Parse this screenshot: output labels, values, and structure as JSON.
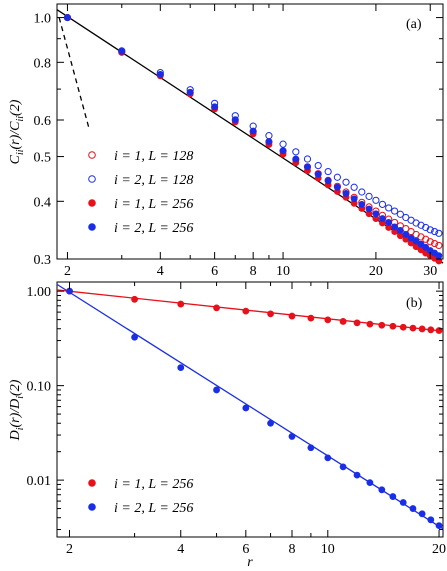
{
  "chart_data": [
    {
      "panel": "(a)",
      "type": "scatter",
      "xscale": "log",
      "yscale": "log",
      "xlim": [
        1.85,
        33
      ],
      "ylim": [
        0.3,
        1.07
      ],
      "xticks": [
        2,
        4,
        6,
        8,
        10,
        20,
        30
      ],
      "yticks": [
        0.3,
        0.4,
        0.5,
        0.6,
        0.8,
        1.0
      ],
      "xtick_labels": [
        "2",
        "4",
        "6",
        "8",
        "10",
        "20",
        "30"
      ],
      "ytick_labels": [
        "0.3",
        "0.4",
        "0.5",
        "0.6",
        "0.8",
        "1.0"
      ],
      "ylabel_main": "C",
      "ylabel_sub1": "ii",
      "ylabel_mid": "(r)/C",
      "ylabel_sub2": "ii",
      "ylabel_end": "(2)",
      "series": [
        {
          "name": "i = 1, L = 128",
          "color": "#e8101a",
          "filled": false,
          "x": [
            2,
            3,
            4,
            5,
            6,
            7,
            8,
            9,
            10,
            11,
            12,
            13,
            14,
            15,
            16,
            17,
            18,
            19,
            20,
            21,
            22,
            23,
            24,
            25,
            26,
            27,
            28,
            29,
            30,
            31,
            32
          ],
          "y": [
            1.0,
            0.843,
            0.752,
            0.688,
            0.64,
            0.6,
            0.566,
            0.538,
            0.514,
            0.493,
            0.475,
            0.459,
            0.444,
            0.431,
            0.419,
            0.408,
            0.398,
            0.389,
            0.381,
            0.373,
            0.366,
            0.36,
            0.354,
            0.349,
            0.344,
            0.339,
            0.335,
            0.331,
            0.327,
            0.324,
            0.321
          ]
        },
        {
          "name": "i = 2, L = 128",
          "color": "#1a2ee8",
          "filled": false,
          "x": [
            2,
            3,
            4,
            5,
            6,
            7,
            8,
            9,
            10,
            11,
            12,
            13,
            14,
            15,
            16,
            17,
            18,
            19,
            20,
            21,
            22,
            23,
            24,
            25,
            26,
            27,
            28,
            29,
            30,
            31,
            32
          ],
          "y": [
            1.0,
            0.847,
            0.76,
            0.698,
            0.652,
            0.613,
            0.582,
            0.555,
            0.532,
            0.512,
            0.494,
            0.478,
            0.464,
            0.451,
            0.44,
            0.429,
            0.419,
            0.41,
            0.402,
            0.394,
            0.387,
            0.381,
            0.375,
            0.369,
            0.364,
            0.359,
            0.355,
            0.351,
            0.347,
            0.344,
            0.341
          ]
        },
        {
          "name": "i = 1, L = 256",
          "color": "#e8101a",
          "filled": true,
          "x": [
            2,
            3,
            4,
            5,
            6,
            7,
            8,
            9,
            10,
            11,
            12,
            13,
            14,
            15,
            16,
            17,
            18,
            19,
            20,
            21,
            22,
            23,
            24,
            25,
            26,
            27,
            28,
            29,
            30,
            31,
            32
          ],
          "y": [
            1.0,
            0.84,
            0.748,
            0.683,
            0.634,
            0.594,
            0.56,
            0.531,
            0.506,
            0.485,
            0.466,
            0.449,
            0.434,
            0.42,
            0.408,
            0.396,
            0.386,
            0.376,
            0.367,
            0.359,
            0.351,
            0.344,
            0.337,
            0.331,
            0.325,
            0.319,
            0.314,
            0.309,
            0.305,
            0.301,
            0.297
          ]
        },
        {
          "name": "i = 2, L = 256",
          "color": "#1a2ee8",
          "filled": true,
          "x": [
            2,
            3,
            4,
            5,
            6,
            7,
            8,
            9,
            10,
            11,
            12,
            13,
            14,
            15,
            16,
            17,
            18,
            19,
            20,
            21,
            22,
            23,
            24,
            25,
            26,
            27,
            28,
            29,
            30,
            31,
            32
          ],
          "y": [
            1.0,
            0.845,
            0.753,
            0.689,
            0.641,
            0.601,
            0.568,
            0.539,
            0.515,
            0.494,
            0.475,
            0.458,
            0.443,
            0.429,
            0.416,
            0.405,
            0.394,
            0.385,
            0.376,
            0.367,
            0.36,
            0.352,
            0.346,
            0.339,
            0.333,
            0.328,
            0.323,
            0.318,
            0.313,
            0.309,
            0.305
          ]
        }
      ],
      "lines": [
        {
          "style": "solid",
          "color": "#000000",
          "x": [
            1.85,
            33
          ],
          "y": [
            1.04,
            0.294
          ]
        },
        {
          "style": "dashed",
          "color": "#000000",
          "x": [
            1.88,
            2.35
          ],
          "y": [
            1.0,
            0.575
          ]
        }
      ],
      "legend": "lower-left"
    },
    {
      "panel": "(b)",
      "type": "scatter",
      "xscale": "log",
      "yscale": "log",
      "xlim": [
        1.85,
        20.5
      ],
      "ylim": [
        0.0025,
        1.25
      ],
      "xticks": [
        2,
        4,
        6,
        8,
        10,
        20
      ],
      "yticks": [
        0.01,
        0.1,
        1.0
      ],
      "xtick_labels": [
        "2",
        "4",
        "6",
        "8",
        "10",
        "20"
      ],
      "ytick_labels": [
        "0.01",
        "0.10",
        "1.00"
      ],
      "xlabel": "r",
      "ylabel_main": "D",
      "ylabel_sub1": "i",
      "ylabel_mid": "(r)/D",
      "ylabel_sub2": "i",
      "ylabel_end": "(2)",
      "series": [
        {
          "name": "i = 1, L = 256",
          "color": "#e8101a",
          "filled": true,
          "x": [
            2,
            3,
            4,
            5,
            6,
            7,
            8,
            9,
            10,
            11,
            12,
            13,
            14,
            15,
            16,
            17,
            18,
            19,
            20
          ],
          "y": [
            1.0,
            0.82,
            0.73,
            0.665,
            0.615,
            0.575,
            0.545,
            0.518,
            0.497,
            0.478,
            0.462,
            0.448,
            0.436,
            0.425,
            0.415,
            0.406,
            0.398,
            0.39,
            0.383
          ]
        },
        {
          "name": "i = 2, L = 256",
          "color": "#1a2ee8",
          "filled": true,
          "x": [
            2,
            3,
            4,
            5,
            6,
            7,
            8,
            9,
            10,
            11,
            12,
            13,
            14,
            15,
            16,
            17,
            18,
            19,
            20
          ],
          "y": [
            1.0,
            0.325,
            0.155,
            0.09,
            0.058,
            0.04,
            0.029,
            0.022,
            0.0172,
            0.0138,
            0.0113,
            0.0094,
            0.0079,
            0.0067,
            0.0058,
            0.005,
            0.0044,
            0.0038,
            0.0033
          ]
        }
      ],
      "lines": [
        {
          "style": "solid",
          "color": "#e8101a",
          "x": [
            1.85,
            20.5
          ],
          "y": [
            1.03,
            0.378
          ]
        },
        {
          "style": "solid",
          "color": "#1a2ee8",
          "x": [
            1.85,
            20.5
          ],
          "y": [
            1.18,
            0.00305
          ]
        }
      ],
      "legend": "lower-left"
    }
  ]
}
